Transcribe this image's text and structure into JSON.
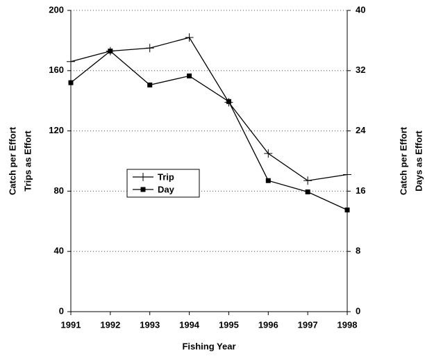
{
  "chart_data": {
    "type": "line",
    "x": [
      1991,
      1992,
      1993,
      1994,
      1995,
      1996,
      1997,
      1998
    ],
    "xlim": [
      1991,
      1998
    ],
    "xticks": [
      1991,
      1992,
      1993,
      1994,
      1995,
      1996,
      1997,
      1998
    ],
    "xlabel": "Fishing Year",
    "ylabel": [
      "Catch per Effort",
      "Trips as Effort"
    ],
    "y2label": [
      "Catch per Effort",
      "Days as Effort"
    ],
    "ylim": [
      0,
      200
    ],
    "yticks": [
      0,
      40,
      80,
      120,
      160,
      200
    ],
    "y2lim": [
      0,
      40
    ],
    "y2ticks": [
      0,
      8,
      16,
      24,
      32,
      40
    ],
    "grid": true,
    "legend": "center-left",
    "series": [
      {
        "name": "Trip",
        "color": "#000000",
        "marker": "plus",
        "axis": "y",
        "values": [
          166,
          173,
          175,
          182,
          139,
          105,
          87,
          91
        ]
      },
      {
        "name": "Day",
        "color": "#000000",
        "marker": "square",
        "axis": "y2",
        "values": [
          30.4,
          34.6,
          30.1,
          31.3,
          27.9,
          17.4,
          15.9,
          13.5
        ]
      }
    ]
  }
}
